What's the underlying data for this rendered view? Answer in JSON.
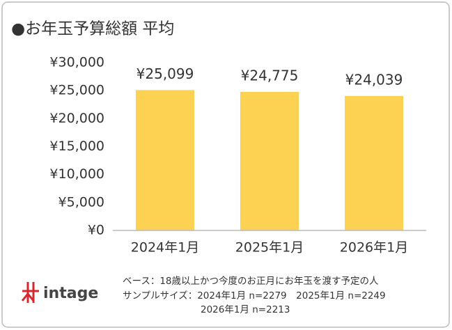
{
  "chart_data": {
    "type": "bar",
    "title": "●お年玉予算総額 平均",
    "categories": [
      "2024年1月",
      "2025年1月",
      "2026年1月"
    ],
    "values": [
      25099,
      24775,
      24039
    ],
    "value_labels": [
      "¥25,099",
      "¥24,775",
      "¥24,039"
    ],
    "color": "#fdd152",
    "ylim": [
      0,
      30000
    ],
    "yticks": [
      {
        "value": 0,
        "label": "¥0"
      },
      {
        "value": 5000,
        "label": "¥5,000"
      },
      {
        "value": 10000,
        "label": "¥10,000"
      },
      {
        "value": 15000,
        "label": "¥15,000"
      },
      {
        "value": 20000,
        "label": "¥20,000"
      },
      {
        "value": 25000,
        "label": "¥25,000"
      },
      {
        "value": 30000,
        "label": "¥30,000"
      }
    ],
    "grid": false,
    "notes": [
      "ベース：18歳以上かつ今度のお正月にお年玉を渡す予定の人",
      "サンプルサイズ：2024年1月 n=2279　2025年1月 n=2249",
      "2026年1月 n=2213"
    ],
    "logo": "intage"
  }
}
